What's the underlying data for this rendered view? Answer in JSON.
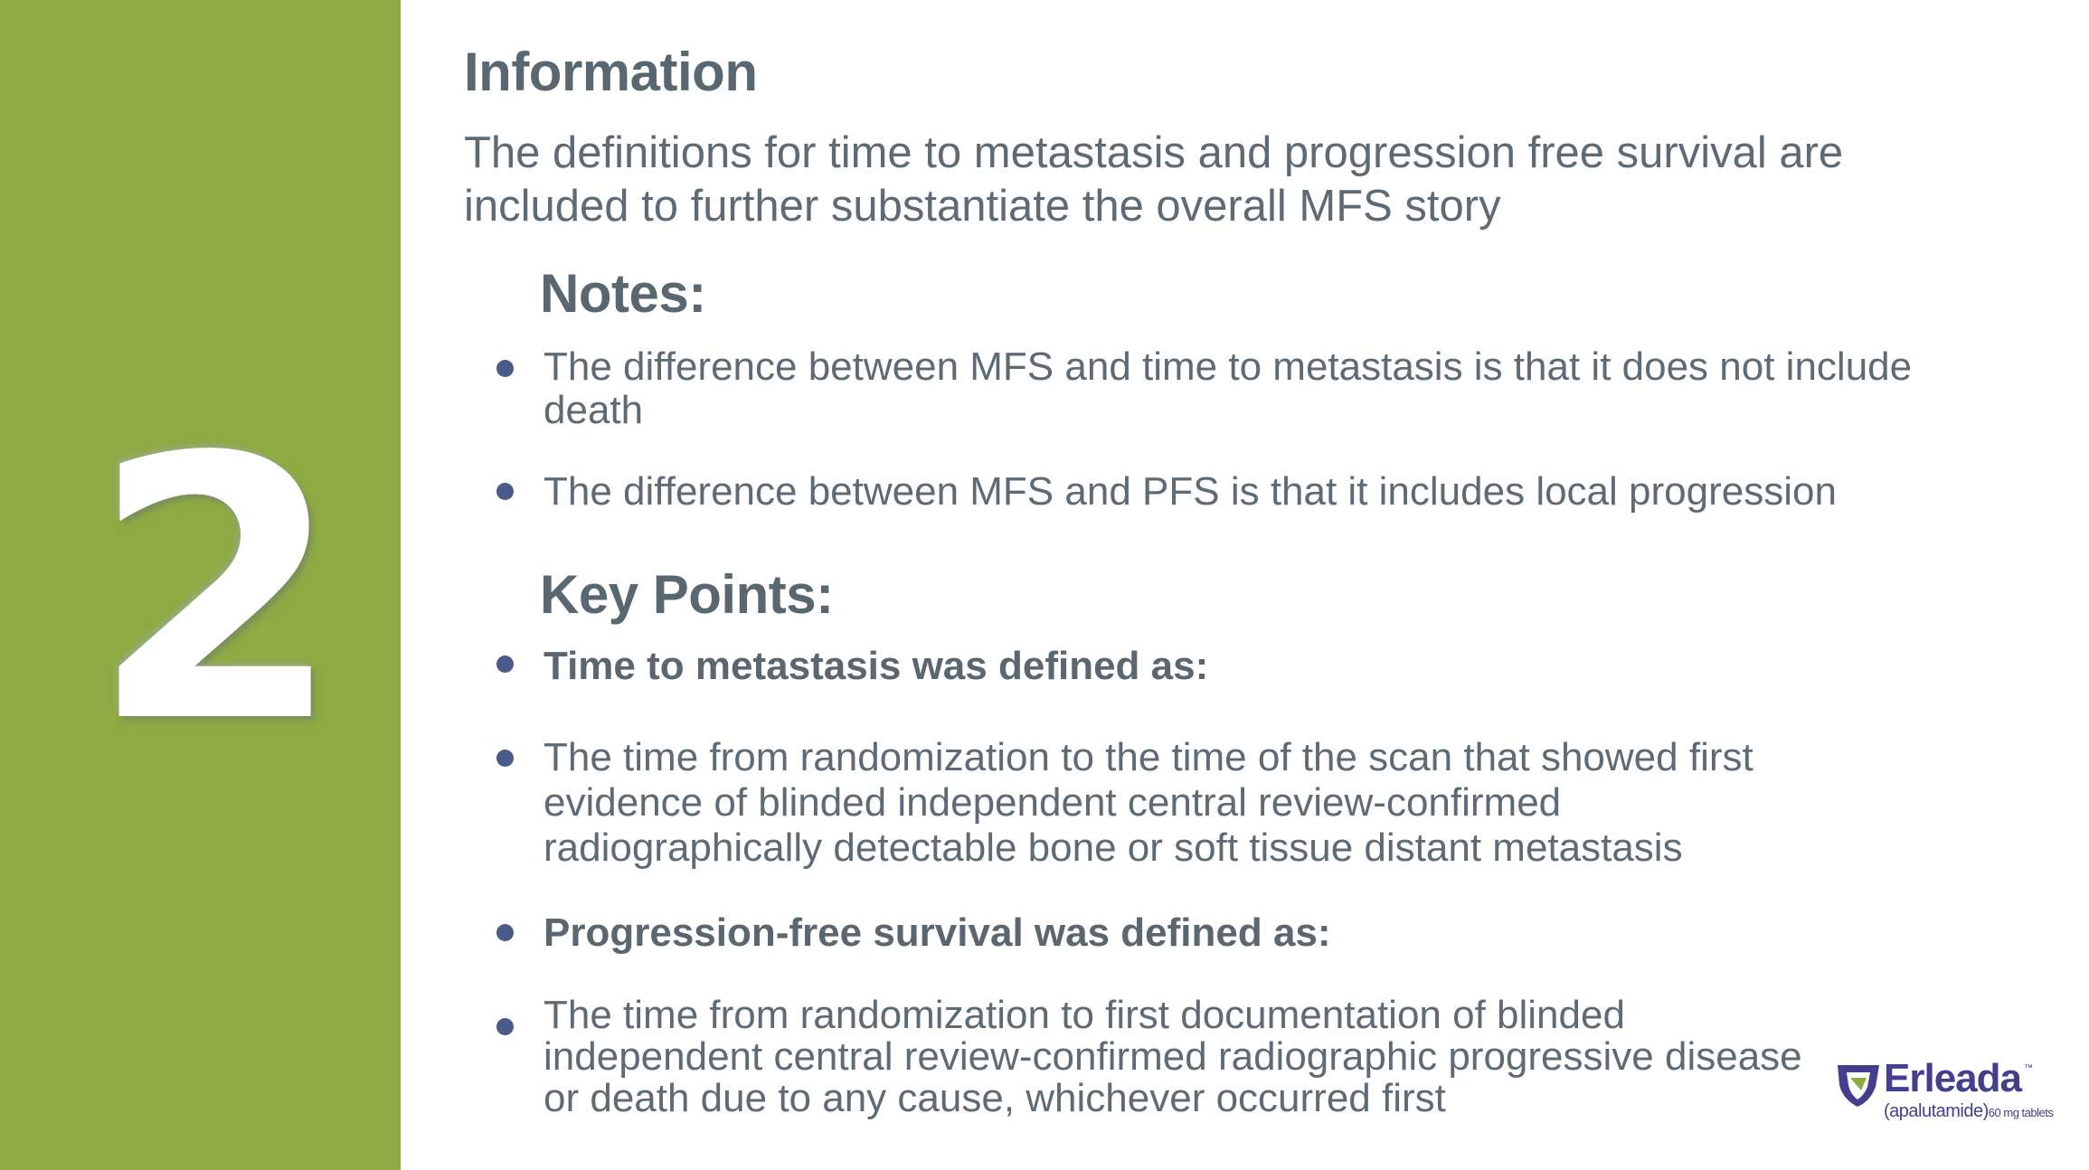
{
  "sidebar": {
    "number": "2",
    "color": "#8eaa43"
  },
  "information": {
    "title": "Information",
    "body": "The definitions for time to metastasis and progression free survival are included to further substantiate the overall MFS story"
  },
  "notes": {
    "title": "Notes:",
    "items": [
      "The difference between MFS and time to metastasis is that it does not include death",
      "The difference between MFS and PFS is that it includes local progression"
    ]
  },
  "key_points": {
    "title": "Key Points:",
    "items": [
      "Time to metastasis was defined as:",
      "The time from randomization to the time of the scan that showed first evidence of blinded independent central review-confirmed radiographically detectable bone or soft tissue distant metastasis",
      "Progression-free survival was defined as:",
      "The time from randomization to first documentation of blinded independent central review-confirmed radiographic progressive disease or death due to any cause, whichever occurred first"
    ]
  },
  "logo": {
    "brand": "Erleada",
    "trademark": "™",
    "generic": "(apalutamide)",
    "dose": "60 mg tablets",
    "colors": {
      "purple": "#433e8e",
      "green": "#8eaa43"
    }
  }
}
